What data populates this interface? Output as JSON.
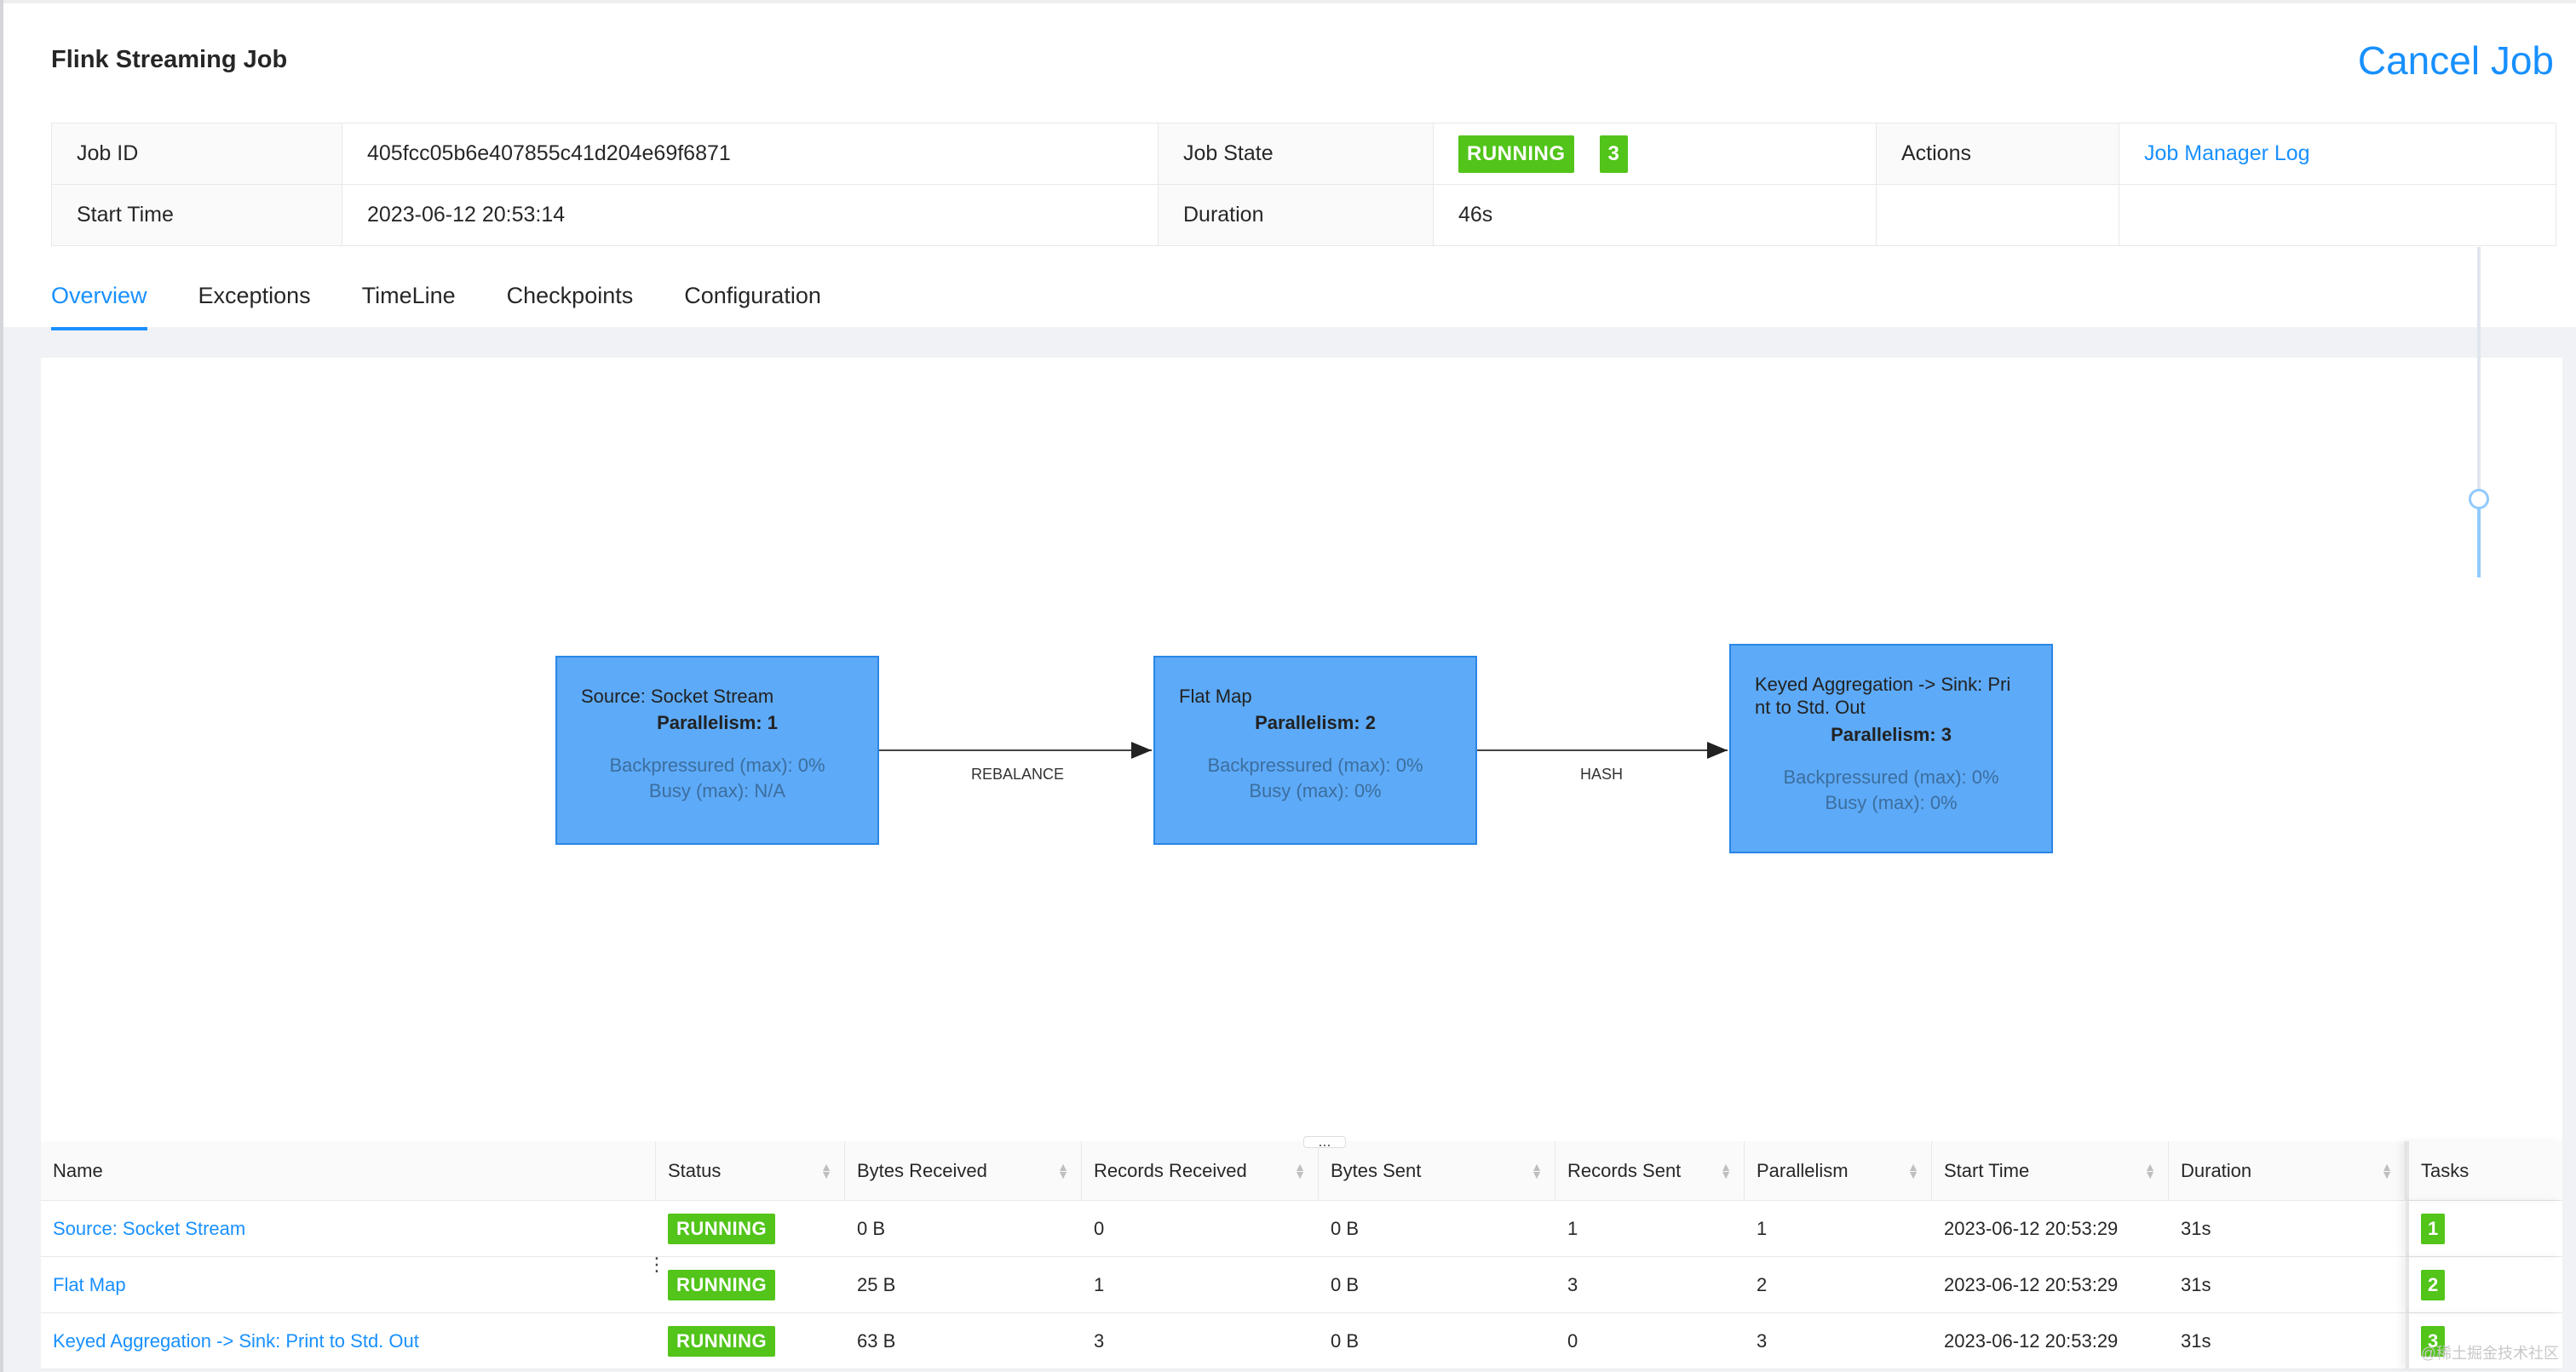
{
  "page": {
    "title": "Flink Streaming Job",
    "cancel_label": "Cancel Job"
  },
  "info": {
    "job_id_label": "Job ID",
    "job_id": "405fcc05b6e407855c41d204e69f6871",
    "job_state_label": "Job State",
    "job_state": "RUNNING",
    "job_state_count": "3",
    "actions_label": "Actions",
    "actions_link": "Job Manager Log",
    "start_time_label": "Start Time",
    "start_time": "2023-06-12 20:53:14",
    "duration_label": "Duration",
    "duration": "46s"
  },
  "tabs": [
    {
      "label": "Overview",
      "active": true
    },
    {
      "label": "Exceptions",
      "active": false
    },
    {
      "label": "TimeLine",
      "active": false
    },
    {
      "label": "Checkpoints",
      "active": false
    },
    {
      "label": "Configuration",
      "active": false
    }
  ],
  "graph": {
    "nodes": [
      {
        "name": "Source: Socket Stream",
        "parallelism": "Parallelism: 1",
        "backpressure": "Backpressured (max): 0%",
        "busy": "Busy (max): N/A"
      },
      {
        "name": "Flat Map",
        "parallelism": "Parallelism: 2",
        "backpressure": "Backpressured (max): 0%",
        "busy": "Busy (max): 0%"
      },
      {
        "name": "Keyed Aggregation -> Sink: Pri nt to Std. Out",
        "name_line1": "Keyed Aggregation -> Sink: Pri",
        "name_line2": "nt to Std. Out",
        "parallelism": "Parallelism: 3",
        "backpressure": "Backpressured (max): 0%",
        "busy": "Busy (max): 0%"
      }
    ],
    "edges": [
      {
        "label": "REBALANCE"
      },
      {
        "label": "HASH"
      }
    ],
    "handle_glyph": "...",
    "zoom_level": 0.25
  },
  "vertices": {
    "columns": [
      "Name",
      "Status",
      "Bytes Received",
      "Records Received",
      "Bytes Sent",
      "Records Sent",
      "Parallelism",
      "Start Time",
      "Duration",
      "Tasks"
    ],
    "rows": [
      {
        "name": "Source: Socket Stream",
        "status": "RUNNING",
        "bytes_received": "0 B",
        "records_received": "0",
        "bytes_sent": "0 B",
        "records_sent": "1",
        "parallelism": "1",
        "start_time": "2023-06-12 20:53:29",
        "duration": "31s",
        "tasks": "1"
      },
      {
        "name": "Flat Map",
        "status": "RUNNING",
        "bytes_received": "25 B",
        "records_received": "1",
        "bytes_sent": "0 B",
        "records_sent": "3",
        "parallelism": "2",
        "start_time": "2023-06-12 20:53:29",
        "duration": "31s",
        "tasks": "2"
      },
      {
        "name": "Keyed Aggregation -> Sink: Print to Std. Out",
        "status": "RUNNING",
        "bytes_received": "63 B",
        "records_received": "3",
        "bytes_sent": "0 B",
        "records_sent": "0",
        "parallelism": "3",
        "start_time": "2023-06-12 20:53:29",
        "duration": "31s",
        "tasks": "3"
      }
    ]
  },
  "colors": {
    "accent": "#1890ff",
    "running": "#52c41a",
    "node_fill": "#5daaf8",
    "node_border": "#2a86e6"
  },
  "watermark": "@稀土掘金技术社区"
}
